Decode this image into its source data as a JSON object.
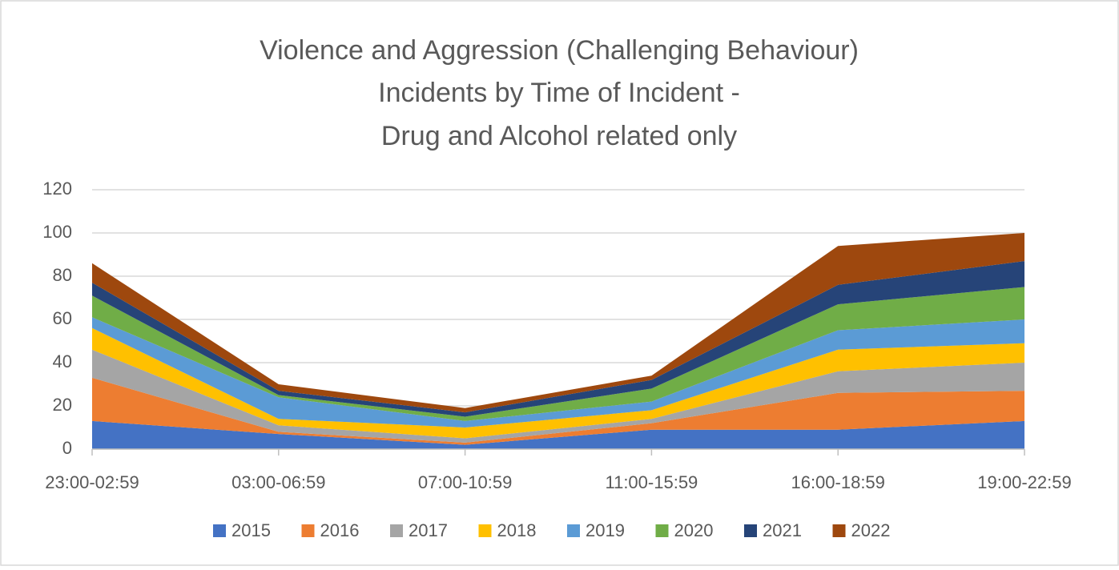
{
  "chart_data": {
    "type": "stacked_area",
    "title": [
      "Violence and Aggression (Challenging Behaviour)",
      "Incidents by Time of Incident -",
      "Drug and Alcohol related only"
    ],
    "categories": [
      "23:00-02:59",
      "03:00-06:59",
      "07:00-10:59",
      "11:00-15:59",
      "16:00-18:59",
      "19:00-22:59"
    ],
    "series": [
      {
        "name": "2015",
        "color": "#4472c4",
        "values": [
          13,
          7,
          2,
          9,
          9,
          13
        ]
      },
      {
        "name": "2016",
        "color": "#ed7d31",
        "values": [
          20,
          1,
          1,
          3,
          17,
          14
        ]
      },
      {
        "name": "2017",
        "color": "#a5a5a5",
        "values": [
          13,
          3,
          2,
          2,
          10,
          13
        ]
      },
      {
        "name": "2018",
        "color": "#ffc000",
        "values": [
          10,
          3,
          5,
          4,
          10,
          9
        ]
      },
      {
        "name": "2019",
        "color": "#5b9bd5",
        "values": [
          5,
          10,
          3,
          4,
          9,
          11
        ]
      },
      {
        "name": "2020",
        "color": "#70ad47",
        "values": [
          10,
          1,
          2,
          6,
          12,
          15
        ]
      },
      {
        "name": "2021",
        "color": "#264478",
        "values": [
          6,
          2,
          2,
          4,
          9,
          12
        ]
      },
      {
        "name": "2022",
        "color": "#9e480e",
        "values": [
          9,
          3,
          2,
          2,
          18,
          13
        ]
      }
    ],
    "ylim": [
      0,
      120
    ],
    "yticks": [
      0,
      20,
      40,
      60,
      80,
      100,
      120
    ],
    "grid": true,
    "legend": "bottom"
  }
}
